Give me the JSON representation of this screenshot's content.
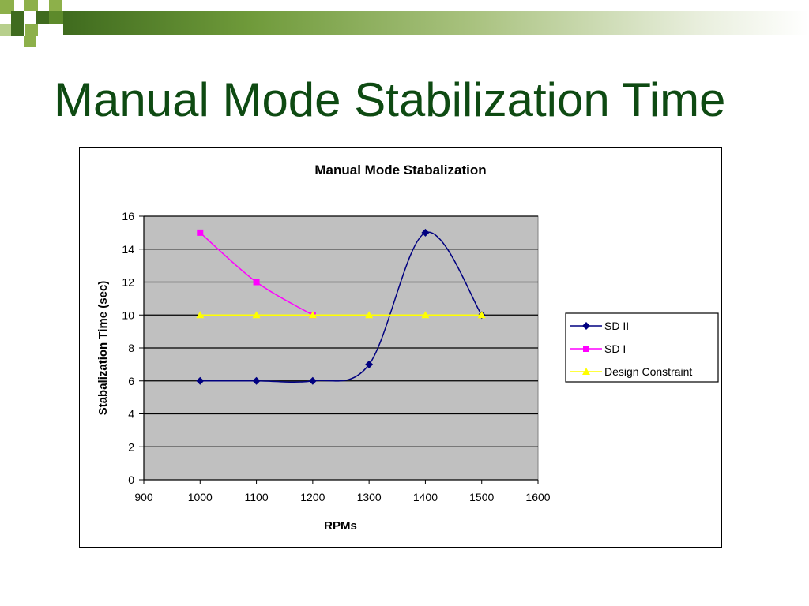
{
  "slide": {
    "title": "Manual Mode Stabilization Time"
  },
  "colors": {
    "title": "#0e4a12",
    "plot_bg": "#c0c0c0",
    "accent_dark": "#3f6b1e",
    "accent_light": "#8db04a"
  },
  "chart_data": {
    "type": "line",
    "title": "Manual Mode Stabalization",
    "xlabel": "RPMs",
    "ylabel": "Stabalization Time (sec)",
    "xlim": [
      900,
      1600
    ],
    "ylim": [
      0,
      16
    ],
    "xticks": [
      900,
      1000,
      1100,
      1200,
      1300,
      1400,
      1500,
      1600
    ],
    "yticks": [
      0,
      2,
      4,
      6,
      8,
      10,
      12,
      14,
      16
    ],
    "grid": true,
    "legend_position": "right",
    "series": [
      {
        "name": "SD II",
        "color": "#000080",
        "marker": "diamond",
        "smooth": true,
        "x": [
          1000,
          1100,
          1200,
          1300,
          1400,
          1500
        ],
        "y": [
          6,
          6,
          6,
          7,
          15,
          10
        ]
      },
      {
        "name": "SD I",
        "color": "#ff00ff",
        "marker": "square",
        "smooth": true,
        "x": [
          1000,
          1100,
          1200
        ],
        "y": [
          15,
          12,
          10
        ]
      },
      {
        "name": "Design Constraint",
        "color": "#ffff00",
        "marker": "triangle",
        "smooth": false,
        "x": [
          1000,
          1100,
          1200,
          1300,
          1400,
          1500
        ],
        "y": [
          10,
          10,
          10,
          10,
          10,
          10
        ]
      }
    ]
  }
}
